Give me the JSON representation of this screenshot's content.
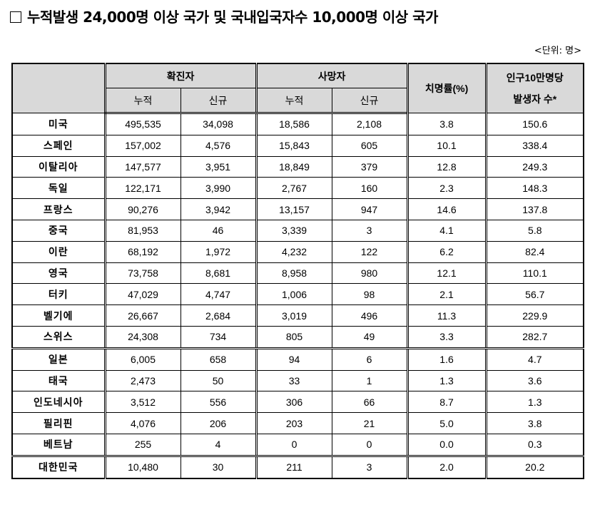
{
  "title": "누적발생 24,000명 이상 국가 및 국내입국자수 10,000명 이상 국가",
  "unit_label": "<단위: 명>",
  "headers": {
    "confirmed": "확진자",
    "deaths": "사망자",
    "cumulative": "누적",
    "new": "신규",
    "fatality_rate": "치명률(%)",
    "per100k_line1": "인구10만명당",
    "per100k_line2": "발생자 수*"
  },
  "rows": [
    {
      "country": "미국",
      "conf_cum": "495,535",
      "conf_new": "34,098",
      "death_cum": "18,586",
      "death_new": "2,108",
      "cfr": "3.8",
      "per100k": "150.6"
    },
    {
      "country": "스페인",
      "conf_cum": "157,002",
      "conf_new": "4,576",
      "death_cum": "15,843",
      "death_new": "605",
      "cfr": "10.1",
      "per100k": "338.4"
    },
    {
      "country": "이탈리아",
      "conf_cum": "147,577",
      "conf_new": "3,951",
      "death_cum": "18,849",
      "death_new": "379",
      "cfr": "12.8",
      "per100k": "249.3"
    },
    {
      "country": "독일",
      "conf_cum": "122,171",
      "conf_new": "3,990",
      "death_cum": "2,767",
      "death_new": "160",
      "cfr": "2.3",
      "per100k": "148.3"
    },
    {
      "country": "프랑스",
      "conf_cum": "90,276",
      "conf_new": "3,942",
      "death_cum": "13,157",
      "death_new": "947",
      "cfr": "14.6",
      "per100k": "137.8"
    },
    {
      "country": "중국",
      "conf_cum": "81,953",
      "conf_new": "46",
      "death_cum": "3,339",
      "death_new": "3",
      "cfr": "4.1",
      "per100k": "5.8"
    },
    {
      "country": "이란",
      "conf_cum": "68,192",
      "conf_new": "1,972",
      "death_cum": "4,232",
      "death_new": "122",
      "cfr": "6.2",
      "per100k": "82.4"
    },
    {
      "country": "영국",
      "conf_cum": "73,758",
      "conf_new": "8,681",
      "death_cum": "8,958",
      "death_new": "980",
      "cfr": "12.1",
      "per100k": "110.1"
    },
    {
      "country": "터키",
      "conf_cum": "47,029",
      "conf_new": "4,747",
      "death_cum": "1,006",
      "death_new": "98",
      "cfr": "2.1",
      "per100k": "56.7"
    },
    {
      "country": "벨기에",
      "conf_cum": "26,667",
      "conf_new": "2,684",
      "death_cum": "3,019",
      "death_new": "496",
      "cfr": "11.3",
      "per100k": "229.9"
    },
    {
      "country": "스위스",
      "conf_cum": "24,308",
      "conf_new": "734",
      "death_cum": "805",
      "death_new": "49",
      "cfr": "3.3",
      "per100k": "282.7"
    },
    {
      "country": "일본",
      "conf_cum": "6,005",
      "conf_new": "658",
      "death_cum": "94",
      "death_new": "6",
      "cfr": "1.6",
      "per100k": "4.7"
    },
    {
      "country": "태국",
      "conf_cum": "2,473",
      "conf_new": "50",
      "death_cum": "33",
      "death_new": "1",
      "cfr": "1.3",
      "per100k": "3.6"
    },
    {
      "country": "인도네시아",
      "conf_cum": "3,512",
      "conf_new": "556",
      "death_cum": "306",
      "death_new": "66",
      "cfr": "8.7",
      "per100k": "1.3"
    },
    {
      "country": "필리핀",
      "conf_cum": "4,076",
      "conf_new": "206",
      "death_cum": "203",
      "death_new": "21",
      "cfr": "5.0",
      "per100k": "3.8"
    },
    {
      "country": "베트남",
      "conf_cum": "255",
      "conf_new": "4",
      "death_cum": "0",
      "death_new": "0",
      "cfr": "0.0",
      "per100k": "0.3"
    },
    {
      "country": "대한민국",
      "conf_cum": "10,480",
      "conf_new": "30",
      "death_cum": "211",
      "death_new": "3",
      "cfr": "2.0",
      "per100k": "20.2"
    }
  ]
}
